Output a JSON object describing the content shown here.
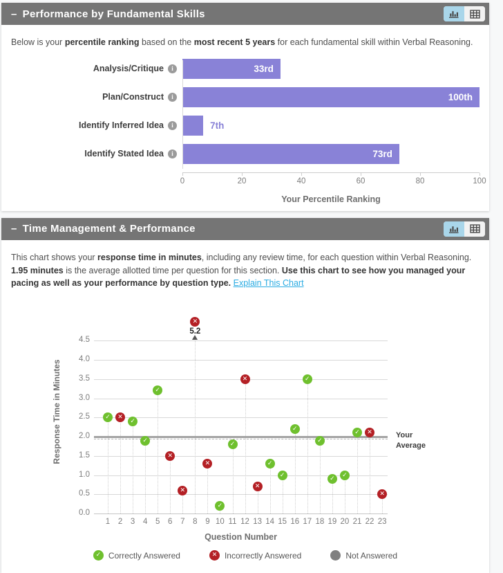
{
  "colors": {
    "header_bg": "#757575",
    "bar": "#8982d7",
    "correct": "#6fc02e",
    "incorrect": "#b42025",
    "not_answered": "#808080",
    "toggle_active": "#a9d6ea",
    "link": "#29abe2"
  },
  "panel1": {
    "collapse_icon": "–",
    "title": "Performance by Fundamental Skills",
    "description": [
      {
        "text": "Below is your "
      },
      {
        "text": "percentile ranking",
        "bold": true
      },
      {
        "text": " based on the "
      },
      {
        "text": "most recent 5 years",
        "bold": true
      },
      {
        "text": " for each fundamental skill within Verbal Reasoning."
      }
    ]
  },
  "panel2": {
    "collapse_icon": "–",
    "title": "Time Management & Performance",
    "description": [
      {
        "text": "This chart shows your "
      },
      {
        "text": "response time in minutes",
        "bold": true
      },
      {
        "text": ", including any review time, for each question within Verbal Reasoning. "
      },
      {
        "text": "1.95 minutes",
        "bold": true
      },
      {
        "text": " is the average allotted time per question for this section. "
      },
      {
        "text": "Use this chart to see how you managed your pacing as well as your performance by question type.",
        "bold": true
      },
      {
        "text": " "
      },
      {
        "text": "Explain This Chart",
        "link": true
      }
    ]
  },
  "chart_data": [
    {
      "type": "bar",
      "orientation": "horizontal",
      "categories": [
        "Analysis/Critique",
        "Plan/Construct",
        "Identify Inferred Idea",
        "Identify Stated Idea"
      ],
      "values": [
        33,
        100,
        7,
        73
      ],
      "value_labels": [
        "33rd",
        "100th",
        "7th",
        "73rd"
      ],
      "xlabel": "Your Percentile Ranking",
      "xlim": [
        0,
        100
      ],
      "xticks": [
        0,
        20,
        40,
        60,
        80,
        100
      ],
      "grid": false
    },
    {
      "type": "scatter",
      "xlabel": "Question Number",
      "ylabel": "Response Time in Minutes",
      "ylim": [
        0,
        4.5
      ],
      "yticks": [
        0.0,
        0.5,
        1.0,
        1.5,
        2.0,
        2.5,
        3.0,
        3.5,
        4.0,
        4.5
      ],
      "xticks": [
        1,
        2,
        3,
        4,
        5,
        6,
        7,
        8,
        9,
        10,
        11,
        12,
        13,
        14,
        15,
        16,
        17,
        18,
        19,
        20,
        21,
        22,
        23
      ],
      "points": [
        {
          "q": 1,
          "time": 2.5,
          "status": "correct"
        },
        {
          "q": 2,
          "time": 2.5,
          "status": "incorrect"
        },
        {
          "q": 3,
          "time": 2.4,
          "status": "correct"
        },
        {
          "q": 4,
          "time": 1.9,
          "status": "correct"
        },
        {
          "q": 5,
          "time": 3.2,
          "status": "correct"
        },
        {
          "q": 6,
          "time": 1.5,
          "status": "incorrect"
        },
        {
          "q": 7,
          "time": 0.6,
          "status": "incorrect"
        },
        {
          "q": 8,
          "time": 5.2,
          "status": "incorrect"
        },
        {
          "q": 9,
          "time": 1.3,
          "status": "incorrect"
        },
        {
          "q": 10,
          "time": 0.2,
          "status": "correct"
        },
        {
          "q": 11,
          "time": 1.8,
          "status": "correct"
        },
        {
          "q": 12,
          "time": 3.5,
          "status": "incorrect"
        },
        {
          "q": 13,
          "time": 0.7,
          "status": "incorrect"
        },
        {
          "q": 14,
          "time": 1.3,
          "status": "correct"
        },
        {
          "q": 15,
          "time": 1.0,
          "status": "correct"
        },
        {
          "q": 16,
          "time": 2.2,
          "status": "correct"
        },
        {
          "q": 17,
          "time": 3.5,
          "status": "correct"
        },
        {
          "q": 18,
          "time": 1.9,
          "status": "correct"
        },
        {
          "q": 19,
          "time": 0.9,
          "status": "correct"
        },
        {
          "q": 20,
          "time": 1.0,
          "status": "correct"
        },
        {
          "q": 21,
          "time": 2.1,
          "status": "correct"
        },
        {
          "q": 22,
          "time": 2.1,
          "status": "incorrect"
        },
        {
          "q": 23,
          "time": 0.5,
          "status": "incorrect"
        }
      ],
      "annotation": {
        "q": 8,
        "label": "5.2"
      },
      "average_line": {
        "label": "Your Average",
        "solid_value": 2.0,
        "dashed_value": 1.95
      },
      "legend": [
        {
          "label": "Correctly Answered",
          "status": "correct",
          "glyph": "✓"
        },
        {
          "label": "Incorrectly Answered",
          "status": "incorrect",
          "glyph": "✕"
        },
        {
          "label": "Not Answered",
          "status": "not_answered",
          "glyph": ""
        }
      ],
      "marker_glyphs": {
        "correct": "✓",
        "incorrect": "✕",
        "not_answered": ""
      }
    }
  ]
}
